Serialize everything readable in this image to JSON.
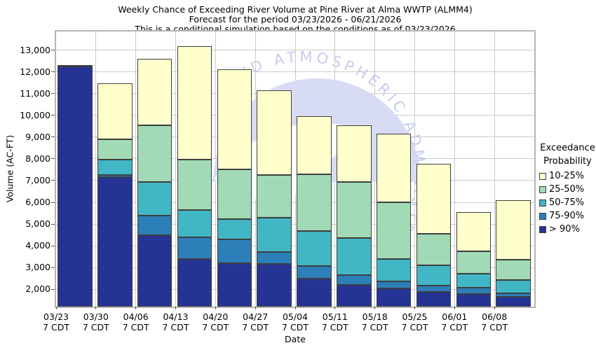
{
  "title": {
    "line1": "Weekly Chance of Exceeding River Volume at Pine River at Alma WWTP (ALMM4)",
    "line2": "Forecast for the period 03/23/2026 - 06/21/2026",
    "line3": "This is a conditional simulation based on the conditions as of 03/23/2026"
  },
  "axes": {
    "y_label": "Volume (AC-FT)",
    "x_label": "Date",
    "y_ticks": [
      {
        "value": 2000,
        "label": "2,000"
      },
      {
        "value": 3000,
        "label": "3,000"
      },
      {
        "value": 4000,
        "label": "4,000"
      },
      {
        "value": 5000,
        "label": "5,000"
      },
      {
        "value": 6000,
        "label": "6,000"
      },
      {
        "value": 7000,
        "label": "7,000"
      },
      {
        "value": 8000,
        "label": "8,000"
      },
      {
        "value": 9000,
        "label": "9,000"
      },
      {
        "value": 10000,
        "label": "10,000"
      },
      {
        "value": 11000,
        "label": "11,000"
      },
      {
        "value": 12000,
        "label": "12,000"
      },
      {
        "value": 13000,
        "label": "13,000"
      }
    ]
  },
  "x_ticks": [
    {
      "date": "03/23",
      "time": "7 CDT"
    },
    {
      "date": "03/30",
      "time": "7 CDT"
    },
    {
      "date": "04/06",
      "time": "7 CDT"
    },
    {
      "date": "04/13",
      "time": "7 CDT"
    },
    {
      "date": "04/20",
      "time": "7 CDT"
    },
    {
      "date": "04/27",
      "time": "7 CDT"
    },
    {
      "date": "05/04",
      "time": "7 CDT"
    },
    {
      "date": "05/11",
      "time": "7 CDT"
    },
    {
      "date": "05/18",
      "time": "7 CDT"
    },
    {
      "date": "05/25",
      "time": "7 CDT"
    },
    {
      "date": "06/01",
      "time": "7 CDT"
    },
    {
      "date": "06/08",
      "time": "7 CDT"
    }
  ],
  "legend": {
    "title_line1": "Exceedance",
    "title_line2": "Probability",
    "entries": [
      {
        "label": "10-25%",
        "color": "#FFFFCC"
      },
      {
        "label": "25-50%",
        "color": "#A1DAB4"
      },
      {
        "label": "50-75%",
        "color": "#41B6C4"
      },
      {
        "label": "75-90%",
        "color": "#2C7FB8"
      },
      {
        "label": "> 90%",
        "color": "#253494"
      }
    ]
  },
  "watermark": {
    "text": "AND ATMOSPHERIC ADMINISTR"
  },
  "colors": {
    "grid": "#cacaca",
    "frame": "#b5b5b5",
    "segment_border": "#3e3e3e",
    "watermark_fill": "#d7dbf4",
    "watermark_text": "#c7ccee"
  },
  "chart_data": {
    "type": "bar",
    "stacked": true,
    "title": "Weekly Chance of Exceeding River Volume at Pine River at Alma WWTP (ALMM4)",
    "xlabel": "Date",
    "ylabel": "Volume (AC-FT)",
    "ylim": [
      1200,
      13860
    ],
    "grid": true,
    "legend_position": "right",
    "categories": [
      "03/23",
      "03/30",
      "04/06",
      "04/13",
      "04/20",
      "04/27",
      "05/04",
      "05/11",
      "05/18",
      "05/25",
      "06/01",
      "06/08"
    ],
    "baseline": 1200,
    "series": [
      {
        "name": "> 90%",
        "color": "#253494",
        "cumulative_top": [
          12250,
          7150,
          4500,
          3380,
          3190,
          3170,
          2500,
          2200,
          2050,
          1870,
          1790,
          1650
        ]
      },
      {
        "name": "75-90%",
        "color": "#2C7FB8",
        "cumulative_top": [
          12250,
          7250,
          5400,
          4400,
          4300,
          3700,
          3080,
          2650,
          2350,
          2170,
          2060,
          1820
        ]
      },
      {
        "name": "50-75%",
        "color": "#41B6C4",
        "cumulative_top": [
          12250,
          7950,
          6950,
          5650,
          5220,
          5290,
          4690,
          4350,
          3400,
          3100,
          2700,
          2410
        ]
      },
      {
        "name": "25-50%",
        "color": "#A1DAB4",
        "cumulative_top": [
          12250,
          8890,
          9550,
          7960,
          7510,
          7270,
          7300,
          6950,
          6010,
          4540,
          3750,
          3360
        ]
      },
      {
        "name": "10-25%",
        "color": "#FFFFCC",
        "cumulative_top": [
          12320,
          11480,
          12600,
          13200,
          12110,
          11170,
          9970,
          9560,
          9150,
          7760,
          5550,
          6090
        ]
      }
    ]
  }
}
